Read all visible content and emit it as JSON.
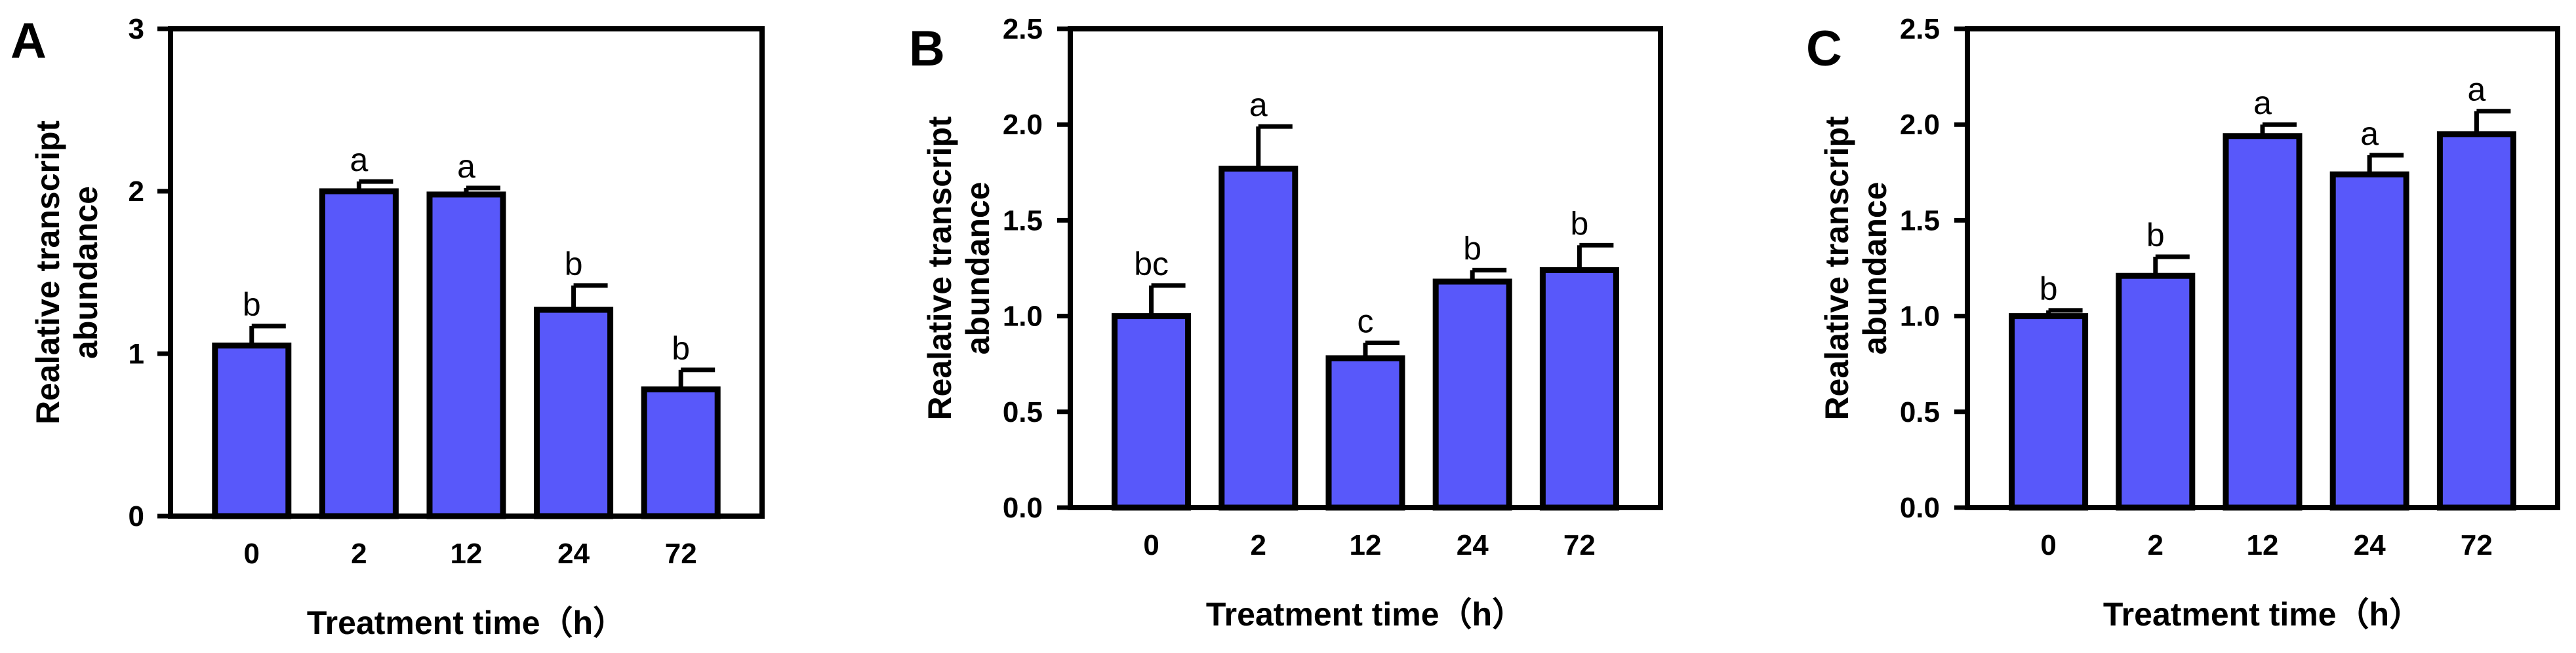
{
  "style": {
    "bar_fill": "#5858fa",
    "axis_color": "#000000"
  },
  "chart_data": [
    {
      "type": "bar",
      "panel": "A",
      "categories": [
        "0",
        "2",
        "12",
        "24",
        "72"
      ],
      "values": [
        1.05,
        2.0,
        1.98,
        1.27,
        0.78
      ],
      "errors": [
        0.12,
        0.06,
        0.04,
        0.15,
        0.12
      ],
      "sig_letters": [
        "b",
        "a",
        "a",
        "b",
        "b"
      ],
      "xlabel": "Treatment time（h）",
      "ylabel_lines": [
        "Realative transcript",
        "abundance"
      ],
      "ylim": [
        0,
        3
      ],
      "yticks": [
        0,
        1,
        2,
        3
      ],
      "ytick_labels": [
        "0",
        "1",
        "2",
        "3"
      ],
      "grid": false,
      "legend": false
    },
    {
      "type": "bar",
      "panel": "B",
      "categories": [
        "0",
        "2",
        "12",
        "24",
        "72"
      ],
      "values": [
        1.0,
        1.77,
        0.78,
        1.18,
        1.24
      ],
      "errors": [
        0.16,
        0.22,
        0.08,
        0.06,
        0.13
      ],
      "sig_letters": [
        "bc",
        "a",
        "c",
        "b",
        "b"
      ],
      "xlabel": "Treatment time（h）",
      "ylabel_lines": [
        "Realative transcript",
        "abundance"
      ],
      "ylim": [
        0,
        2.5
      ],
      "yticks": [
        0,
        0.5,
        1.0,
        1.5,
        2.0,
        2.5
      ],
      "ytick_labels": [
        "0.0",
        "0.5",
        "1.0",
        "1.5",
        "2.0",
        "2.5"
      ],
      "grid": false,
      "legend": false
    },
    {
      "type": "bar",
      "panel": "C",
      "categories": [
        "0",
        "2",
        "12",
        "24",
        "72"
      ],
      "values": [
        1.0,
        1.21,
        1.94,
        1.74,
        1.95
      ],
      "errors": [
        0.03,
        0.1,
        0.06,
        0.1,
        0.12
      ],
      "sig_letters": [
        "b",
        "b",
        "a",
        "a",
        "a"
      ],
      "xlabel": "Treatment time（h）",
      "ylabel_lines": [
        "Realative transcript",
        "abundance"
      ],
      "ylim": [
        0,
        2.5
      ],
      "yticks": [
        0,
        0.5,
        1.0,
        1.5,
        2.0,
        2.5
      ],
      "ytick_labels": [
        "0.0",
        "0.5",
        "1.0",
        "1.5",
        "2.0",
        "2.5"
      ],
      "grid": false,
      "legend": false
    }
  ]
}
